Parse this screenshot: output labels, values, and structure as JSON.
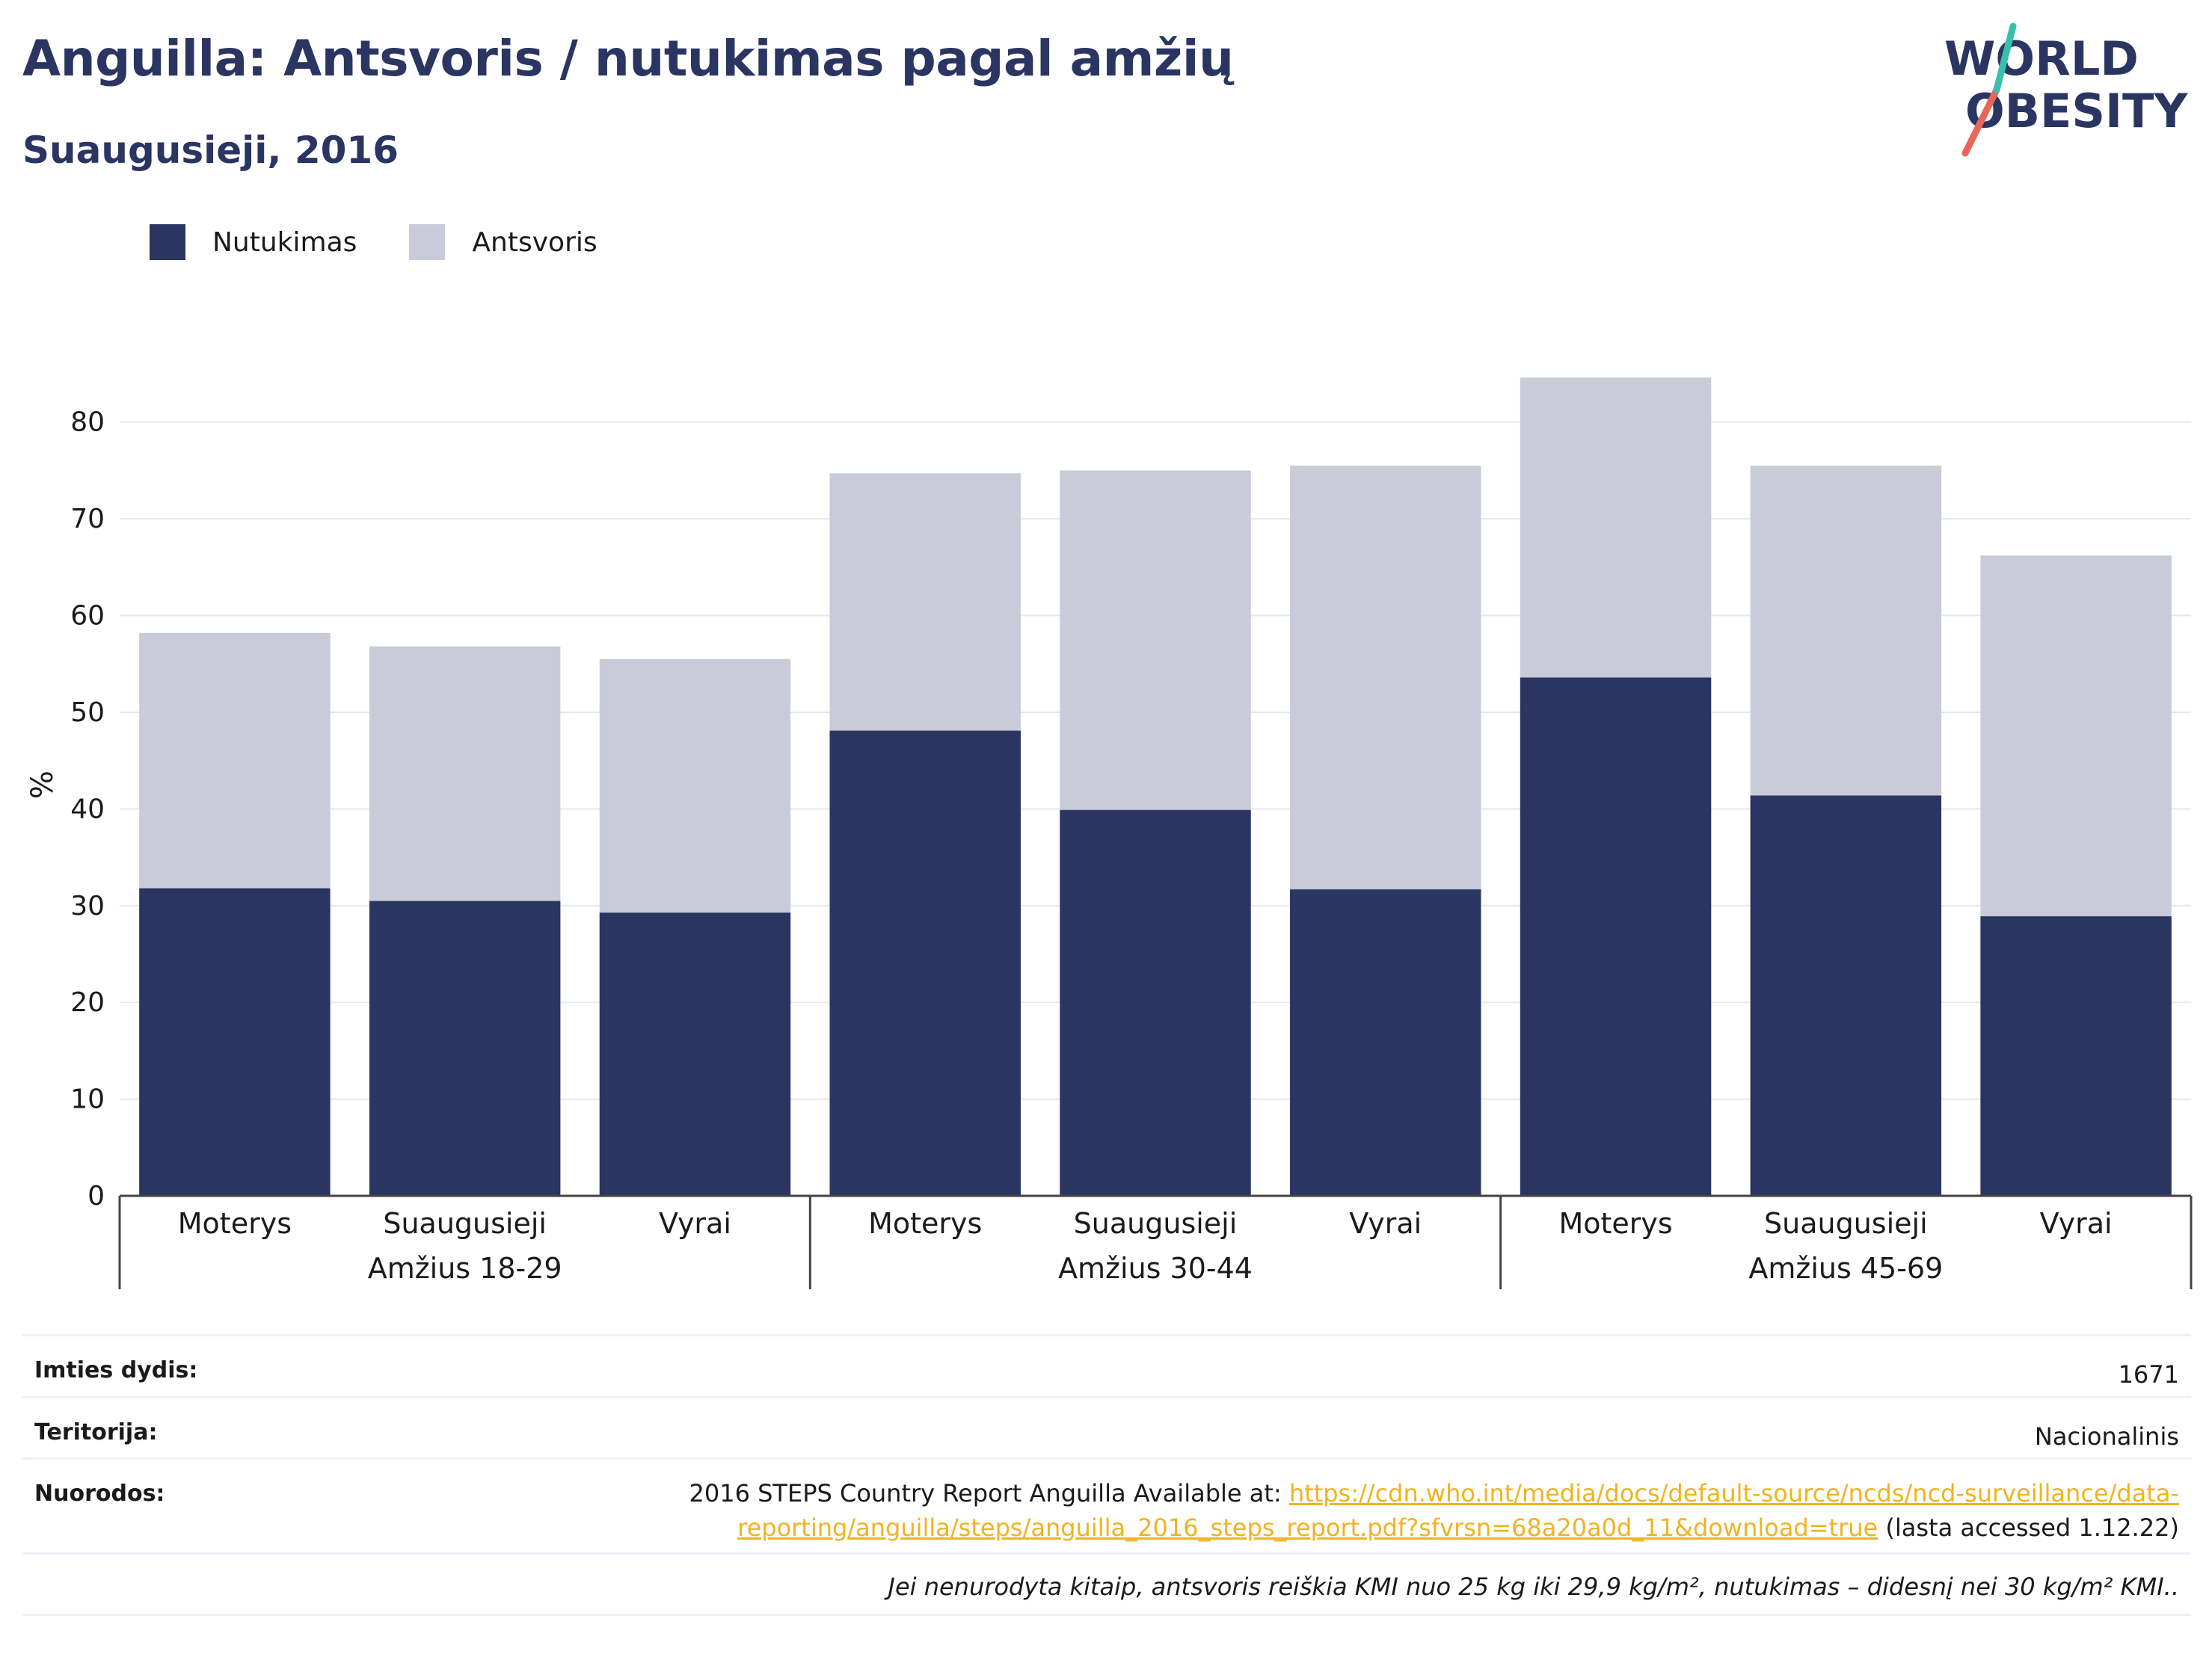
{
  "header": {
    "title": "Anguilla: Antsvoris / nutukimas pagal amžių",
    "subtitle": "Suaugusieji, 2016"
  },
  "logo": {
    "line1": "WORLD",
    "line2": "OBESITY",
    "colors": [
      "#2a3561",
      "#e8665a",
      "#3bbfad"
    ]
  },
  "legend": [
    {
      "label": "Nutukimas",
      "color": "#2a3561"
    },
    {
      "label": "Antsvoris",
      "color": "#c9cbd8"
    }
  ],
  "chart_data": {
    "type": "bar",
    "stacked": true,
    "ylabel": "%",
    "ylim": [
      0,
      85
    ],
    "yticks": [
      0,
      10,
      20,
      30,
      40,
      50,
      60,
      70,
      80
    ],
    "grid": true,
    "legend_position": "top-left",
    "groups": [
      "Amžius 18-29",
      "Amžius 30-44",
      "Amžius 45-69"
    ],
    "categories": [
      "Moterys",
      "Suaugusieji",
      "Vyrai",
      "Moterys",
      "Suaugusieji",
      "Vyrai",
      "Moterys",
      "Suaugusieji",
      "Vyrai"
    ],
    "series": [
      {
        "name": "Nutukimas",
        "color": "#2a3561",
        "values": [
          31.8,
          30.5,
          29.3,
          48.1,
          39.9,
          31.7,
          53.6,
          41.4,
          28.9
        ]
      },
      {
        "name": "Antsvoris",
        "color": "#c9cbd8",
        "values": [
          26.4,
          26.3,
          26.2,
          26.6,
          35.1,
          43.8,
          31.0,
          34.1,
          37.3
        ]
      }
    ]
  },
  "info": {
    "sample_label": "Imties dydis:",
    "sample_value": "1671",
    "territory_label": "Teritorija:",
    "territory_value": "Nacionalinis",
    "refs_label": "Nuorodos:",
    "refs_prefix": "2016 STEPS Country Report Anguilla Available at: ",
    "refs_link_line1": "https://cdn.who.int/media/docs/default-source/ncds/ncd-surveillance/data-",
    "refs_link_line2": "reporting/anguilla/steps/anguilla_2016_steps_report.pdf?sfvrsn=68a20a0d_11&download=true",
    "refs_suffix": " (lasta accessed 1.12.22)",
    "note": "Jei nenurodyta kitaip, antsvoris reiškia KMI nuo 25 kg iki 29,9 kg/m², nutukimas – didesnį nei 30 kg/m² KMI.."
  }
}
